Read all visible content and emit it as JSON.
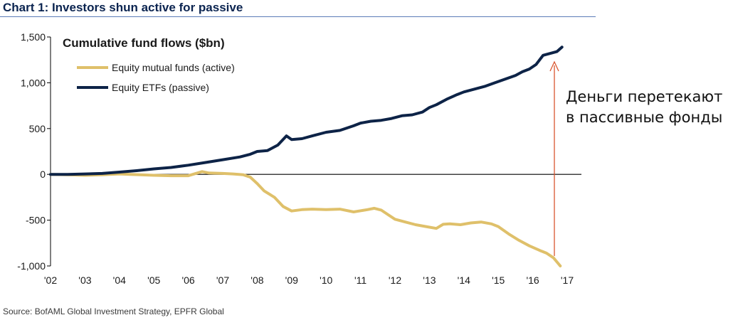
{
  "header": {
    "title": "Chart 1: Investors shun active for passive"
  },
  "source": "Source: BofAML Global Investment Strategy, EPFR Global",
  "annotation": {
    "line1": "Деньги перетекают",
    "line2": "в пассивные фонды"
  },
  "colors": {
    "active": "#dfc06a",
    "passive": "#0d2347",
    "arrow": "#d9562f",
    "title": "#0b2450"
  },
  "chart_data": {
    "type": "line",
    "title": "Cumulative fund flows ($bn)",
    "xlabel": "",
    "ylabel": "",
    "xlim": [
      2002,
      2017
    ],
    "ylim": [
      -1000,
      1500
    ],
    "grid": false,
    "legend_position": "top-left",
    "x_ticks": [
      "'02",
      "'03",
      "'04",
      "'05",
      "'06",
      "'07",
      "'08",
      "'09",
      "'10",
      "'11",
      "'12",
      "'13",
      "'14",
      "'15",
      "'16",
      "'17"
    ],
    "y_ticks": [
      "-1,000",
      "-500",
      "0",
      "500",
      "1,000",
      "1,500"
    ],
    "y_tick_values": [
      -1000,
      -500,
      0,
      500,
      1000,
      1500
    ],
    "series": [
      {
        "name": "Equity mutual funds (active)",
        "color": "#dfc06a",
        "x": [
          2002.0,
          2002.5,
          2003.0,
          2003.5,
          2004.0,
          2004.3,
          2004.6,
          2005.0,
          2005.5,
          2006.0,
          2006.4,
          2006.6,
          2007.0,
          2007.3,
          2007.6,
          2007.8,
          2008.0,
          2008.2,
          2008.5,
          2008.75,
          2009.0,
          2009.3,
          2009.6,
          2010.0,
          2010.4,
          2010.8,
          2011.2,
          2011.4,
          2011.6,
          2011.8,
          2012.0,
          2012.3,
          2012.6,
          2012.9,
          2013.2,
          2013.4,
          2013.6,
          2013.9,
          2014.2,
          2014.5,
          2014.8,
          2015.0,
          2015.3,
          2015.6,
          2015.9,
          2016.2,
          2016.4,
          2016.6,
          2016.8
        ],
        "values": [
          0,
          -5,
          -10,
          -5,
          5,
          0,
          -5,
          -10,
          -15,
          -15,
          30,
          15,
          10,
          5,
          -5,
          -30,
          -100,
          -180,
          -250,
          -350,
          -400,
          -385,
          -380,
          -385,
          -380,
          -410,
          -385,
          -370,
          -390,
          -440,
          -490,
          -520,
          -550,
          -570,
          -590,
          -545,
          -540,
          -550,
          -530,
          -520,
          -540,
          -570,
          -650,
          -720,
          -780,
          -830,
          -860,
          -910,
          -1000
        ]
      },
      {
        "name": "Equity ETFs (passive)",
        "color": "#0d2347",
        "x": [
          2002.0,
          2002.5,
          2003.0,
          2003.5,
          2004.0,
          2004.5,
          2005.0,
          2005.5,
          2006.0,
          2006.5,
          2007.0,
          2007.5,
          2007.8,
          2008.0,
          2008.3,
          2008.6,
          2008.85,
          2009.0,
          2009.3,
          2009.6,
          2010.0,
          2010.4,
          2010.8,
          2011.0,
          2011.3,
          2011.6,
          2011.9,
          2012.2,
          2012.5,
          2012.8,
          2013.0,
          2013.2,
          2013.5,
          2013.8,
          2014.0,
          2014.3,
          2014.6,
          2014.9,
          2015.2,
          2015.5,
          2015.7,
          2015.9,
          2016.1,
          2016.3,
          2016.5,
          2016.7,
          2016.85
        ],
        "values": [
          0,
          0,
          5,
          10,
          25,
          40,
          60,
          75,
          100,
          130,
          160,
          190,
          220,
          250,
          260,
          320,
          420,
          380,
          390,
          420,
          460,
          480,
          530,
          560,
          580,
          590,
          610,
          640,
          650,
          680,
          730,
          760,
          820,
          870,
          900,
          930,
          960,
          1000,
          1040,
          1080,
          1120,
          1150,
          1200,
          1300,
          1320,
          1340,
          1390
        ]
      }
    ]
  }
}
